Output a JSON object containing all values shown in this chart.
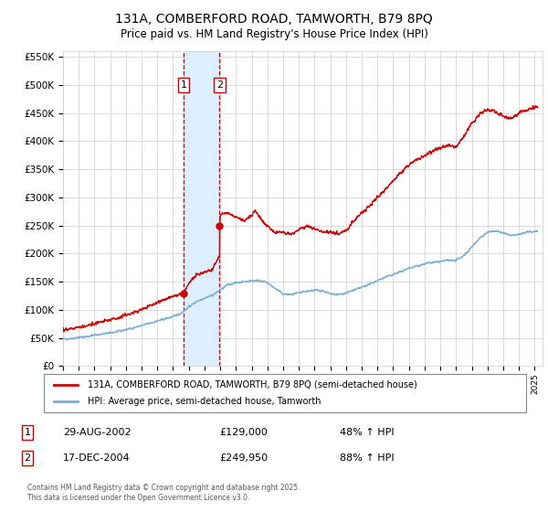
{
  "title": "131A, COMBERFORD ROAD, TAMWORTH, B79 8PQ",
  "subtitle": "Price paid vs. HM Land Registry's House Price Index (HPI)",
  "footer": "Contains HM Land Registry data © Crown copyright and database right 2025.\nThis data is licensed under the Open Government Licence v3.0.",
  "legend_line1": "131A, COMBERFORD ROAD, TAMWORTH, B79 8PQ (semi-detached house)",
  "legend_line2": "HPI: Average price, semi-detached house, Tamworth",
  "transaction1_date": "29-AUG-2002",
  "transaction1_price": "£129,000",
  "transaction1_hpi": "48% ↑ HPI",
  "transaction1_x": 2002.66,
  "transaction1_y": 129000,
  "transaction2_date": "17-DEC-2004",
  "transaction2_price": "£249,950",
  "transaction2_hpi": "88% ↑ HPI",
  "transaction2_x": 2004.96,
  "transaction2_y": 249950,
  "red_color": "#cc0000",
  "blue_color": "#7aaed4",
  "shaded_color": "#ddeeff",
  "dashed_color": "#cc0000",
  "grid_color": "#cccccc",
  "background_color": "#ffffff",
  "ylim": [
    0,
    560000
  ],
  "xlim_start": 1995,
  "xlim_end": 2025.5,
  "ytick_step": 50000,
  "hpi_years": [
    1995,
    1995.5,
    1996,
    1996.5,
    1997,
    1997.5,
    1998,
    1998.5,
    1999,
    1999.5,
    2000,
    2000.5,
    2001,
    2001.5,
    2002,
    2002.5,
    2003,
    2003.5,
    2004,
    2004.5,
    2005,
    2005.5,
    2006,
    2006.5,
    2007,
    2007.5,
    2008,
    2008.5,
    2009,
    2009.5,
    2010,
    2010.5,
    2011,
    2011.5,
    2012,
    2012.5,
    2013,
    2013.5,
    2014,
    2014.5,
    2015,
    2015.5,
    2016,
    2016.5,
    2017,
    2017.5,
    2018,
    2018.5,
    2019,
    2019.5,
    2020,
    2020.5,
    2021,
    2021.5,
    2022,
    2022.5,
    2023,
    2023.5,
    2024,
    2024.5,
    2025
  ],
  "hpi_vals": [
    48000,
    49000,
    51000,
    52500,
    55000,
    57000,
    59000,
    61500,
    65000,
    68000,
    72000,
    76000,
    80000,
    84000,
    88000,
    94000,
    105000,
    115000,
    121000,
    126000,
    135000,
    145000,
    148000,
    150000,
    152000,
    152000,
    148000,
    138000,
    128000,
    127000,
    130000,
    133000,
    135000,
    134000,
    128000,
    127000,
    130000,
    135000,
    140000,
    146000,
    152000,
    158000,
    163000,
    168000,
    174000,
    178000,
    182000,
    184000,
    186000,
    188000,
    188000,
    196000,
    212000,
    228000,
    238000,
    240000,
    237000,
    232000,
    234000,
    238000,
    240000
  ],
  "red_years": [
    1995,
    1995.5,
    1996,
    1996.5,
    1997,
    1997.5,
    1998,
    1998.5,
    1999,
    1999.5,
    2000,
    2000.5,
    2001,
    2001.5,
    2002,
    2002.5,
    2002.66,
    2002.66,
    2003,
    2003.5,
    2004,
    2004.5,
    2004.96,
    2004.96,
    2005,
    2005.5,
    2006,
    2006.5,
    2007,
    2007.25,
    2007.5,
    2008,
    2008.5,
    2009,
    2009.5,
    2010,
    2010.5,
    2011,
    2011.5,
    2012,
    2012.5,
    2013,
    2013.5,
    2014,
    2014.5,
    2015,
    2015.5,
    2016,
    2016.5,
    2017,
    2017.5,
    2018,
    2018.5,
    2019,
    2019.5,
    2020,
    2020.5,
    2021,
    2021.5,
    2022,
    2022.5,
    2023,
    2023.5,
    2024,
    2024.5,
    2025
  ],
  "red_vals": [
    65000,
    66500,
    69000,
    71500,
    76000,
    79000,
    82000,
    86000,
    91000,
    95000,
    101000,
    107000,
    113000,
    119000,
    124000,
    128000,
    129000,
    129000,
    148000,
    161000,
    167000,
    172000,
    198000,
    249950,
    270000,
    272000,
    265000,
    258000,
    268000,
    276000,
    265000,
    248000,
    238000,
    237000,
    235000,
    242000,
    248000,
    244000,
    240000,
    238000,
    235000,
    242000,
    258000,
    272000,
    285000,
    300000,
    315000,
    330000,
    344000,
    358000,
    368000,
    375000,
    382000,
    388000,
    392000,
    390000,
    408000,
    432000,
    448000,
    456000,
    452000,
    445000,
    440000,
    450000,
    455000,
    460000
  ]
}
